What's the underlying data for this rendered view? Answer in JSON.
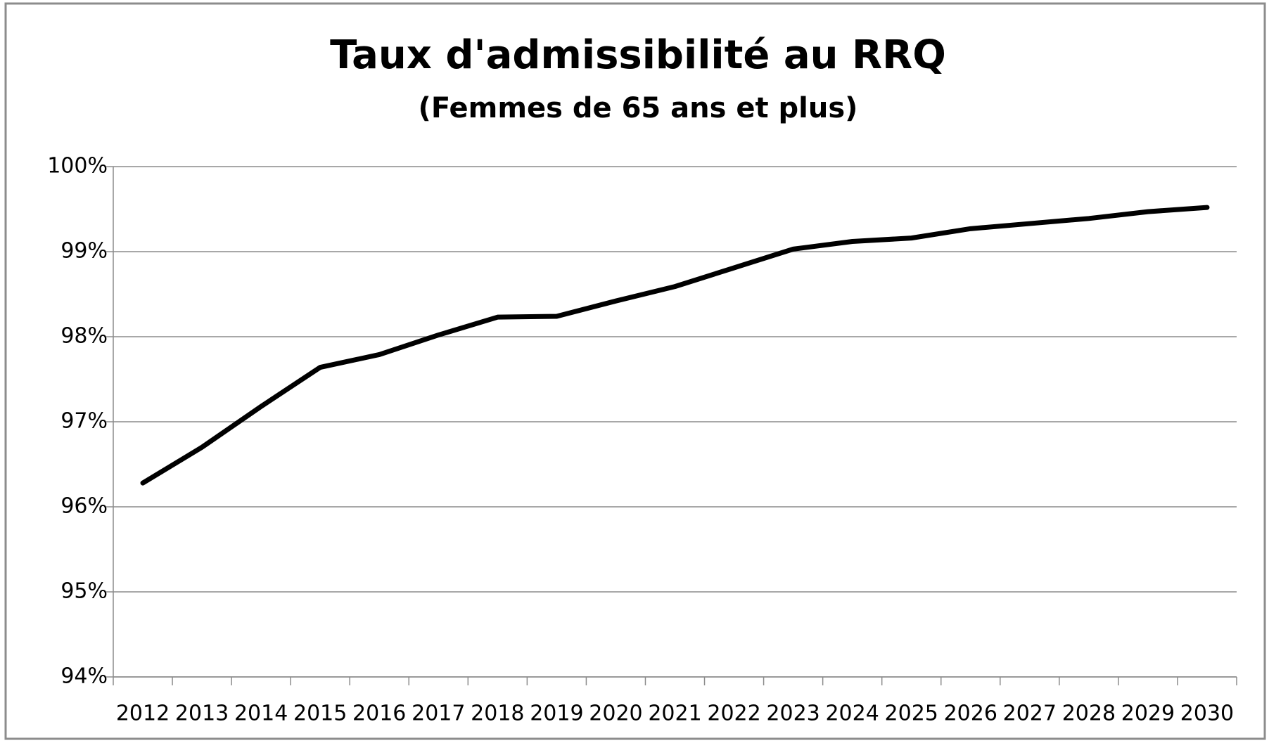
{
  "chart_data": {
    "type": "line",
    "title": "Taux d'admissibilité au RRQ",
    "subtitle": "(Femmes de 65 ans et plus)",
    "categories": [
      "2012",
      "2013",
      "2014",
      "2015",
      "2016",
      "2017",
      "2018",
      "2019",
      "2020",
      "2021",
      "2022",
      "2023",
      "2024",
      "2025",
      "2026",
      "2027",
      "2028",
      "2029",
      "2030"
    ],
    "series": [
      {
        "name": "Taux d'admissibilité",
        "color": "#000000",
        "values": [
          96.28,
          96.7,
          97.18,
          97.64,
          97.79,
          98.02,
          98.23,
          98.24,
          98.42,
          98.59,
          98.81,
          99.03,
          99.12,
          99.16,
          99.27,
          99.33,
          99.39,
          99.47,
          99.52
        ]
      }
    ],
    "ylim": [
      94,
      100
    ],
    "yticks": [
      {
        "value": 94,
        "label": "94%"
      },
      {
        "value": 95,
        "label": "95%"
      },
      {
        "value": 96,
        "label": "96%"
      },
      {
        "value": 97,
        "label": "97%"
      },
      {
        "value": 98,
        "label": "98%"
      },
      {
        "value": 99,
        "label": "99%"
      },
      {
        "value": 100,
        "label": "100%"
      }
    ],
    "grid": true
  }
}
